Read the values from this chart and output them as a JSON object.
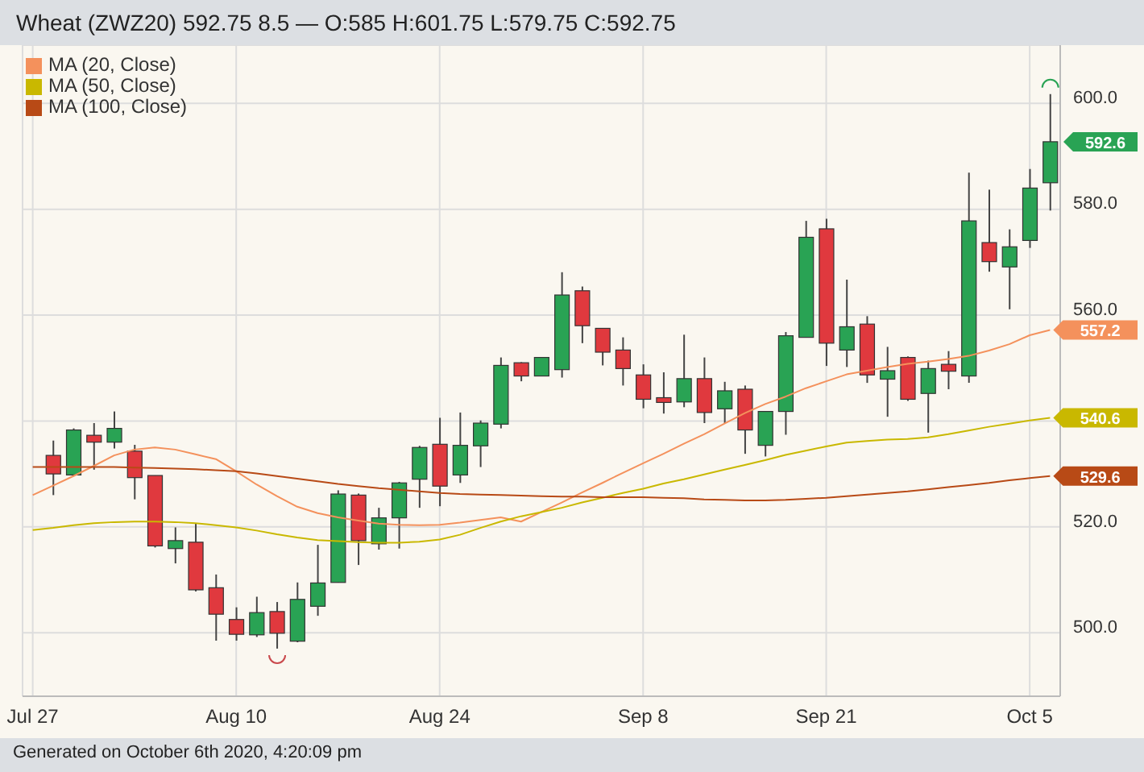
{
  "chart_data": {
    "type": "candlestick",
    "title": "Wheat (ZWZ20) 592.75 8.5 — O:585 H:601.75 L:579.75 C:592.75",
    "categories": [
      "Jul 27",
      null,
      null,
      null,
      null,
      null,
      null,
      null,
      null,
      null,
      "Aug 10",
      null,
      null,
      null,
      null,
      null,
      null,
      null,
      null,
      null,
      "Aug 24",
      null,
      null,
      null,
      null,
      null,
      null,
      null,
      null,
      null,
      "Sep 8",
      null,
      null,
      null,
      null,
      null,
      null,
      null,
      null,
      "Sep 21",
      null,
      null,
      null,
      null,
      null,
      null,
      null,
      null,
      null,
      "Oct 5",
      null
    ],
    "ohlc": [
      null,
      [
        533.5,
        536.3,
        526,
        530
      ],
      [
        529.8,
        538.6,
        529.8,
        538.3
      ],
      [
        537.3,
        539.6,
        530.8,
        536
      ],
      [
        536,
        541.8,
        534.8,
        538.6
      ],
      [
        534.3,
        535.5,
        525.2,
        529.3
      ],
      [
        529.7,
        529.7,
        516.1,
        516.4
      ],
      [
        515.9,
        519.9,
        513.1,
        517.4
      ],
      [
        517.1,
        520.6,
        507.8,
        508.1
      ],
      [
        508.5,
        511,
        498.5,
        503.5
      ],
      [
        502.5,
        504.8,
        498.5,
        499.7
      ],
      [
        499.6,
        506.8,
        499.2,
        503.8
      ],
      [
        504,
        505.8,
        497,
        499.9
      ],
      [
        498.4,
        509.5,
        498.2,
        506.3
      ],
      [
        505,
        516.6,
        503.2,
        509.4
      ],
      [
        509.5,
        526.9,
        509.5,
        526.2
      ],
      [
        526,
        526.3,
        512.8,
        517.4
      ],
      [
        516.8,
        523.6,
        515.7,
        521.7
      ],
      [
        521.7,
        528.5,
        515.9,
        528.3
      ],
      [
        529,
        535.3,
        523.6,
        535
      ],
      [
        535.6,
        540.6,
        523.9,
        527.7
      ],
      [
        529.8,
        541.6,
        528.3,
        535.4
      ],
      [
        535.3,
        540.1,
        531.3,
        539.6
      ],
      [
        539.4,
        552,
        538.6,
        550.5
      ],
      [
        551,
        551.1,
        547.5,
        548.5
      ],
      [
        548.5,
        552,
        548.5,
        552
      ],
      [
        549.7,
        568.1,
        548.2,
        563.8
      ],
      [
        564.6,
        565.4,
        554.7,
        558
      ],
      [
        557.5,
        557.5,
        550.5,
        553
      ],
      [
        553.4,
        555.8,
        546.7,
        549.9
      ],
      [
        548.7,
        550.7,
        542.4,
        544.1
      ],
      [
        544.4,
        549.2,
        541.4,
        543.5
      ],
      [
        543.6,
        556.3,
        542.6,
        548
      ],
      [
        548,
        552,
        539.6,
        541.6
      ],
      [
        542.3,
        547.4,
        539.6,
        545.7
      ],
      [
        546,
        546.7,
        533.8,
        538.3
      ],
      [
        535.4,
        541.8,
        533.3,
        541.8
      ],
      [
        541.8,
        556.8,
        537.4,
        556.1
      ],
      [
        555.8,
        577.8,
        555.8,
        574.7
      ],
      [
        576.3,
        578.2,
        550.4,
        554.7
      ],
      [
        553.4,
        566.7,
        550.2,
        557.8
      ],
      [
        558.3,
        559.8,
        547.2,
        548.7
      ],
      [
        547.9,
        554,
        540.8,
        549.5
      ],
      [
        552,
        552.2,
        543.8,
        544.1
      ],
      [
        545.2,
        551.4,
        537.8,
        549.9
      ],
      [
        550.7,
        553.2,
        546,
        549.4
      ],
      [
        548.5,
        586.9,
        547.2,
        577.8
      ],
      [
        573.7,
        583.7,
        568.2,
        570.1
      ],
      [
        569.1,
        576.2,
        561.1,
        572.9
      ],
      [
        574.1,
        587.6,
        572.7,
        584
      ],
      [
        585,
        601.75,
        579.75,
        592.75
      ]
    ],
    "colors": [
      null,
      "#e0393e",
      "#29a354",
      "#e0393e",
      "#29a354",
      "#e0393e",
      "#e0393e",
      "#29a354",
      "#e0393e",
      "#e0393e",
      "#e0393e",
      "#29a354",
      "#e0393e",
      "#29a354",
      "#29a354",
      "#29a354",
      "#e0393e",
      "#29a354",
      "#29a354",
      "#29a354",
      "#e0393e",
      "#29a354",
      "#29a354",
      "#29a354",
      "#e0393e",
      "#29a354",
      "#29a354",
      "#e0393e",
      "#e0393e",
      "#e0393e",
      "#e0393e",
      "#e0393e",
      "#29a354",
      "#e0393e",
      "#29a354",
      "#e0393e",
      "#29a354",
      "#29a354",
      "#29a354",
      "#e0393e",
      "#29a354",
      "#e0393e",
      "#29a354",
      "#e0393e",
      "#29a354",
      "#e0393e",
      "#29a354",
      "#e0393e",
      "#29a354",
      "#29a354",
      "#29a354"
    ],
    "series": [
      {
        "name": "MA (20, Close)",
        "type": "line",
        "color": "#f4915c",
        "values": [
          526,
          527.8,
          529.6,
          531.5,
          533.5,
          534.6,
          535,
          534.6,
          533.7,
          532.8,
          530.5,
          528,
          525.8,
          523.8,
          522.6,
          521.8,
          521.2,
          520.6,
          520.4,
          520.3,
          520.4,
          520.8,
          521.3,
          521.8,
          521,
          522.8,
          524.6,
          526.5,
          528.3,
          530.2,
          532,
          533.8,
          535.7,
          537.5,
          539.5,
          541.5,
          543.2,
          544.6,
          546.2,
          547.5,
          548.8,
          549.5,
          550.2,
          550.8,
          551.2,
          551.7,
          552.3,
          553.3,
          554.5,
          556.2,
          557.2
        ],
        "value_labels": [
          null,
          null,
          null,
          null,
          null,
          null,
          null,
          null,
          null,
          null,
          null,
          null,
          null,
          null,
          null,
          null,
          null,
          null,
          null,
          null,
          null,
          null,
          null,
          null,
          null,
          null,
          null,
          null,
          null,
          null,
          null,
          null,
          null,
          null,
          null,
          null,
          null,
          null,
          null,
          null,
          null,
          null,
          null,
          null,
          null,
          null,
          null,
          null,
          null,
          null,
          "557.2"
        ]
      },
      {
        "name": "MA (50, Close)",
        "type": "line",
        "color": "#c9b800",
        "values": [
          519.4,
          519.8,
          520.3,
          520.7,
          520.9,
          521,
          521,
          520.9,
          520.7,
          520.3,
          519.9,
          519.3,
          518.6,
          518,
          517.5,
          517.3,
          517.1,
          517,
          517,
          517.2,
          517.6,
          518.5,
          519.8,
          521,
          522,
          522.8,
          523.6,
          524.6,
          525.5,
          526.4,
          527.2,
          528.2,
          529,
          529.9,
          530.8,
          531.7,
          532.6,
          533.6,
          534.4,
          535.2,
          535.9,
          536.2,
          536.5,
          536.6,
          536.9,
          537.5,
          538.2,
          538.9,
          539.5,
          540.1,
          540.6
        ],
        "value_labels": [
          null,
          null,
          null,
          null,
          null,
          null,
          null,
          null,
          null,
          null,
          null,
          null,
          null,
          null,
          null,
          null,
          null,
          null,
          null,
          null,
          null,
          null,
          null,
          null,
          null,
          null,
          null,
          null,
          null,
          null,
          null,
          null,
          null,
          null,
          null,
          null,
          null,
          null,
          null,
          null,
          null,
          null,
          null,
          null,
          null,
          null,
          null,
          null,
          null,
          null,
          "540.6"
        ]
      },
      {
        "name": "MA (100, Close)",
        "type": "line",
        "color": "#b84a16",
        "values": [
          531.3,
          531.3,
          531.3,
          531.3,
          531.3,
          531.2,
          531.1,
          531,
          530.9,
          530.7,
          530.5,
          530.1,
          529.6,
          529.1,
          528.6,
          528.1,
          527.7,
          527.3,
          527,
          526.7,
          526.4,
          526.2,
          526.1,
          526,
          525.9,
          525.8,
          525.7,
          525.7,
          525.6,
          525.6,
          525.6,
          525.5,
          525.4,
          525.2,
          525.1,
          525,
          525,
          525.1,
          525.3,
          525.5,
          525.8,
          526.1,
          526.4,
          526.7,
          527.1,
          527.5,
          527.9,
          528.3,
          528.8,
          529.2,
          529.6
        ],
        "value_labels": [
          null,
          null,
          null,
          null,
          null,
          null,
          null,
          null,
          null,
          null,
          null,
          null,
          null,
          null,
          null,
          null,
          null,
          null,
          null,
          null,
          null,
          null,
          null,
          null,
          null,
          null,
          null,
          null,
          null,
          null,
          null,
          null,
          null,
          null,
          null,
          null,
          null,
          null,
          null,
          null,
          null,
          null,
          null,
          null,
          null,
          null,
          null,
          null,
          null,
          null,
          "529.6"
        ]
      }
    ],
    "ylim": [
      488,
      611
    ],
    "yticks": [
      {
        "value": 500,
        "label": "500.0"
      },
      {
        "value": 520,
        "label": "520.0"
      },
      {
        "value": 540,
        "label": null
      },
      {
        "value": 560,
        "label": "560.0"
      },
      {
        "value": 580,
        "label": "580.0"
      },
      {
        "value": 600,
        "label": "600.0"
      }
    ],
    "grid": true,
    "legend": "top left",
    "marker": "none",
    "line_style": "solid",
    "annotations": [
      "592.6",
      "Generated on October 6th 2020, 4:20:09 pm"
    ]
  }
}
